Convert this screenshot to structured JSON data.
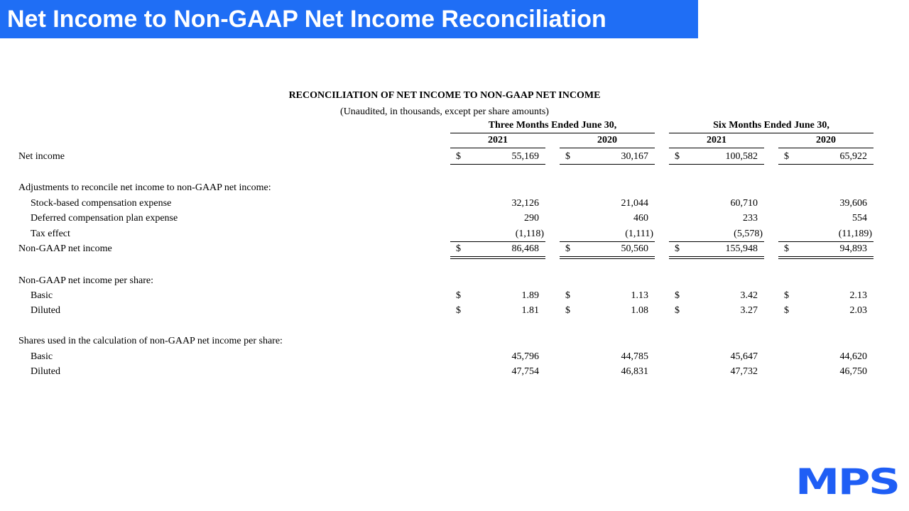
{
  "header": {
    "title": "Net Income to Non-GAAP Net Income Reconciliation"
  },
  "table": {
    "title": "RECONCILIATION OF NET INCOME TO NON-GAAP NET INCOME",
    "subtitle": "(Unaudited, in thousands, except per share amounts)",
    "periods": [
      "Three Months Ended June 30,",
      "Six Months Ended June 30,"
    ],
    "years": [
      "2021",
      "2020",
      "2021",
      "2020"
    ],
    "rows": [
      {
        "label": "Net income",
        "currency": "$",
        "values": [
          "55,169",
          "30,167",
          "100,582",
          "65,922"
        ]
      },
      {
        "label": "Adjustments to reconcile net income to non-GAAP net income:"
      },
      {
        "label": "Stock-based compensation expense",
        "values": [
          "32,126",
          "21,044",
          "60,710",
          "39,606"
        ]
      },
      {
        "label": "Deferred compensation plan expense",
        "values": [
          "290",
          "460",
          "233",
          "554"
        ]
      },
      {
        "label": "Tax effect",
        "values": [
          "(1,118)",
          "(1,111)",
          "(5,578)",
          "(11,189)"
        ]
      },
      {
        "label": "Non-GAAP net income",
        "currency": "$",
        "values": [
          "86,468",
          "50,560",
          "155,948",
          "94,893"
        ]
      },
      {
        "label": "Non-GAAP net income per share:"
      },
      {
        "label": "Basic",
        "currency": "$",
        "values": [
          "1.89",
          "1.13",
          "3.42",
          "2.13"
        ]
      },
      {
        "label": "Diluted",
        "currency": "$",
        "values": [
          "1.81",
          "1.08",
          "3.27",
          "2.03"
        ]
      },
      {
        "label": "Shares used in the calculation of non-GAAP net income per share:"
      },
      {
        "label": "Basic",
        "values": [
          "45,796",
          "44,785",
          "45,647",
          "44,620"
        ]
      },
      {
        "label": "Diluted",
        "values": [
          "47,754",
          "46,831",
          "47,732",
          "46,750"
        ]
      }
    ]
  },
  "logo": "MPS"
}
